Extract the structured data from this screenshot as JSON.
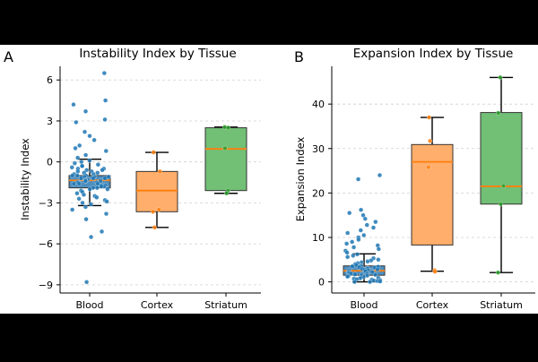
{
  "chart_data": [
    {
      "panel_label": "A",
      "type": "box-strip",
      "title": "Instability Index by Tissue",
      "xlabel": "",
      "ylabel": "Instability Index",
      "categories": [
        "Blood",
        "Cortex",
        "Striatum"
      ],
      "yticks": [
        6,
        3,
        0,
        -3,
        -6,
        -9
      ],
      "ytick_labels": [
        "6",
        "3",
        "0",
        "−3",
        "−6",
        "−9"
      ],
      "ylim": [
        -9.6,
        7.0
      ],
      "grid": "y dashed",
      "colors": [
        "#4f8fbf",
        "#ffae6b",
        "#72bf76"
      ],
      "point_colors": [
        "#1f77b4",
        "#ff7f0e",
        "#2ca02c"
      ],
      "boxes": [
        {
          "category": "Blood",
          "whisker_low": -3.2,
          "q1": -1.9,
          "median": -1.35,
          "q3": -1.0,
          "whisker_high": 0.2
        },
        {
          "category": "Cortex",
          "whisker_low": -4.8,
          "q1": -3.65,
          "median": -2.1,
          "q3": -0.7,
          "whisker_high": 0.7
        },
        {
          "category": "Striatum",
          "whisker_low": -2.3,
          "q1": -2.1,
          "median": 0.95,
          "q3": 2.5,
          "whisker_high": 2.55
        }
      ],
      "points": [
        [
          6.5,
          4.5,
          4.2,
          3.7,
          3.1,
          2.9,
          2.2,
          1.9,
          1.6,
          1.2,
          1.0,
          0.8,
          0.5,
          0.3,
          0.1,
          0.0,
          -0.1,
          -0.2,
          -0.3,
          -0.3,
          -0.4,
          -0.5,
          -0.5,
          -0.6,
          -0.6,
          -0.7,
          -0.7,
          -0.8,
          -0.8,
          -0.9,
          -0.9,
          -1.0,
          -1.0,
          -1.0,
          -1.1,
          -1.1,
          -1.1,
          -1.2,
          -1.2,
          -1.2,
          -1.3,
          -1.3,
          -1.3,
          -1.4,
          -1.4,
          -1.4,
          -1.5,
          -1.5,
          -1.5,
          -1.6,
          -1.6,
          -1.6,
          -1.7,
          -1.7,
          -1.8,
          -1.8,
          -1.9,
          -1.9,
          -2.0,
          -2.0,
          -2.1,
          -2.2,
          -2.3,
          -2.4,
          -2.5,
          -2.6,
          -2.7,
          -2.8,
          -2.9,
          -3.0,
          -3.1,
          -3.3,
          -3.5,
          -3.8,
          -4.2,
          -5.1,
          -5.5,
          -8.8
        ],
        [
          0.7,
          -0.7,
          -3.5,
          -3.65,
          -4.8
        ],
        [
          2.55,
          2.5,
          1.0,
          -2.1,
          -2.3
        ]
      ]
    },
    {
      "panel_label": "B",
      "type": "box-strip",
      "title": "Expansion Index by Tissue",
      "xlabel": "",
      "ylabel": "Expansion Index",
      "categories": [
        "Blood",
        "Cortex",
        "Striatum"
      ],
      "yticks": [
        0,
        10,
        20,
        30,
        40
      ],
      "ytick_labels": [
        "0",
        "10",
        "20",
        "30",
        "40"
      ],
      "ylim": [
        -2.5,
        48.5
      ],
      "grid": "y dashed",
      "colors": [
        "#4f8fbf",
        "#ffae6b",
        "#72bf76"
      ],
      "point_colors": [
        "#1f77b4",
        "#ff7f0e",
        "#2ca02c"
      ],
      "boxes": [
        {
          "category": "Blood",
          "whisker_low": 0,
          "q1": 1.5,
          "median": 2.5,
          "q3": 3.6,
          "whisker_high": 6.3
        },
        {
          "category": "Cortex",
          "whisker_low": 2.4,
          "q1": 8.3,
          "median": 27.0,
          "q3": 30.9,
          "whisker_high": 37.0
        },
        {
          "category": "Striatum",
          "whisker_low": 2.1,
          "q1": 17.5,
          "median": 21.5,
          "q3": 38.1,
          "whisker_high": 46.0
        }
      ],
      "points": [
        [
          24.0,
          23.1,
          16.2,
          15.5,
          15.0,
          14.2,
          13.5,
          12.8,
          12.2,
          11.6,
          11.0,
          10.5,
          10.0,
          9.5,
          9.0,
          8.6,
          8.2,
          7.8,
          7.4,
          7.0,
          6.6,
          6.2,
          5.9,
          5.6,
          5.3,
          5.0,
          4.8,
          4.6,
          4.4,
          4.2,
          4.0,
          3.8,
          3.6,
          3.5,
          3.4,
          3.3,
          3.2,
          3.1,
          3.0,
          2.9,
          2.8,
          2.7,
          2.6,
          2.5,
          2.4,
          2.3,
          2.2,
          2.1,
          2.0,
          1.9,
          1.8,
          1.7,
          1.6,
          1.5,
          1.4,
          1.3,
          1.2,
          1.1,
          1.0,
          0.9,
          0.8,
          0.7,
          0.6,
          0.5,
          0.4,
          0.3,
          0.2,
          0.1,
          0.0,
          0.0
        ],
        [
          37.0,
          31.7,
          25.8,
          2.6,
          2.3
        ],
        [
          46.0,
          38.0,
          21.6,
          17.5,
          2.1
        ]
      ]
    }
  ]
}
